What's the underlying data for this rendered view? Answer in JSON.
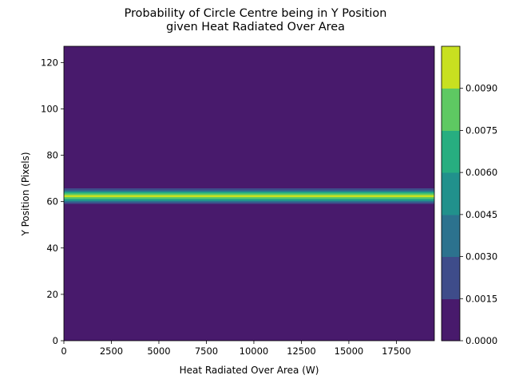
{
  "chart_data": {
    "type": "heatmap",
    "title": "Probability of Circle Centre being in Y Position\ngiven Heat Radiated Over Area",
    "xlabel": "Heat Radiated Over Area (W)",
    "ylabel": "Y Position (Pixels)",
    "xlim": [
      0,
      19500
    ],
    "ylim": [
      0,
      127
    ],
    "x_ticks": [
      0,
      2500,
      5000,
      7500,
      10000,
      12500,
      15000,
      17500
    ],
    "x_tick_labels": [
      "0",
      "2500",
      "5000",
      "7500",
      "10000",
      "12500",
      "15000",
      "17500"
    ],
    "y_ticks": [
      0,
      20,
      40,
      60,
      80,
      100,
      120
    ],
    "y_tick_labels": [
      "0",
      "20",
      "40",
      "60",
      "80",
      "100",
      "120"
    ],
    "band": {
      "center_y": 62.5,
      "sigma": 1.72,
      "peak": 0.0093,
      "note_x_uniform": true
    },
    "colorbar": {
      "levels": [
        0.0,
        0.0015,
        0.003,
        0.0045,
        0.006,
        0.0075,
        0.009
      ],
      "tick_labels": [
        "0.0000",
        "0.0015",
        "0.0030",
        "0.0045",
        "0.0060",
        "0.0075",
        "0.0090"
      ],
      "colors": [
        "#481a6c",
        "#3e4c8a",
        "#2c728e",
        "#21918c",
        "#27ae80",
        "#5ec962",
        "#c8e020"
      ]
    }
  }
}
